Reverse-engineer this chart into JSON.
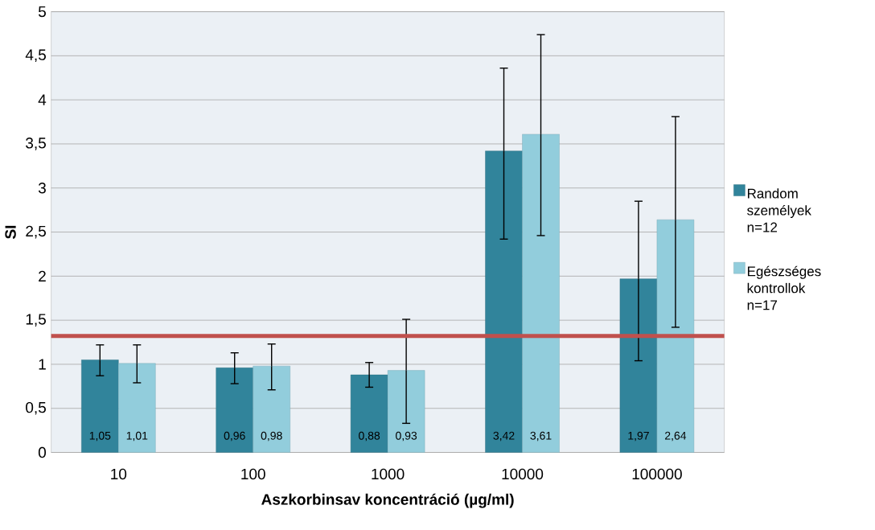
{
  "chart_data": {
    "type": "bar",
    "xlabel": "Aszkorbinsav koncentráció (µg/ml)",
    "ylabel": "SI",
    "categories": [
      "10",
      "100",
      "1000",
      "10000",
      "100000"
    ],
    "series": [
      {
        "name": "Random személyek n=12",
        "color": "#31849b",
        "values": [
          1.05,
          0.96,
          0.88,
          3.42,
          1.97
        ],
        "value_labels": [
          "1,05",
          "0,96",
          "0,88",
          "3,42",
          "1,97"
        ],
        "errors": [
          [
            0.87,
            1.22
          ],
          [
            0.78,
            1.13
          ],
          [
            0.74,
            1.02
          ],
          [
            2.42,
            4.36
          ],
          [
            1.04,
            2.85
          ]
        ]
      },
      {
        "name": "Egészséges kontrollok n=17",
        "color": "#92cddc",
        "values": [
          1.01,
          0.98,
          0.93,
          3.61,
          2.64
        ],
        "value_labels": [
          "1,01",
          "0,98",
          "0,93",
          "3,61",
          "2,64"
        ],
        "errors": [
          [
            0.79,
            1.22
          ],
          [
            0.71,
            1.23
          ],
          [
            0.33,
            1.51
          ],
          [
            2.46,
            4.74
          ],
          [
            1.42,
            3.81
          ]
        ]
      }
    ],
    "ylim": [
      0,
      5
    ],
    "yticks": [
      0,
      {
        "value": 0.5,
        "label": "0,5"
      },
      1,
      {
        "value": 1.5,
        "label": "1,5"
      },
      2,
      {
        "value": 2.5,
        "label": "2,5"
      },
      3,
      {
        "value": 3.5,
        "label": "3,5"
      },
      4,
      {
        "value": 4.5,
        "label": "4,5"
      },
      5
    ],
    "ref_lines": [
      {
        "axis": "y",
        "value": 1.32,
        "color": "#c0504d"
      }
    ],
    "grid": "y",
    "legend": "right"
  }
}
